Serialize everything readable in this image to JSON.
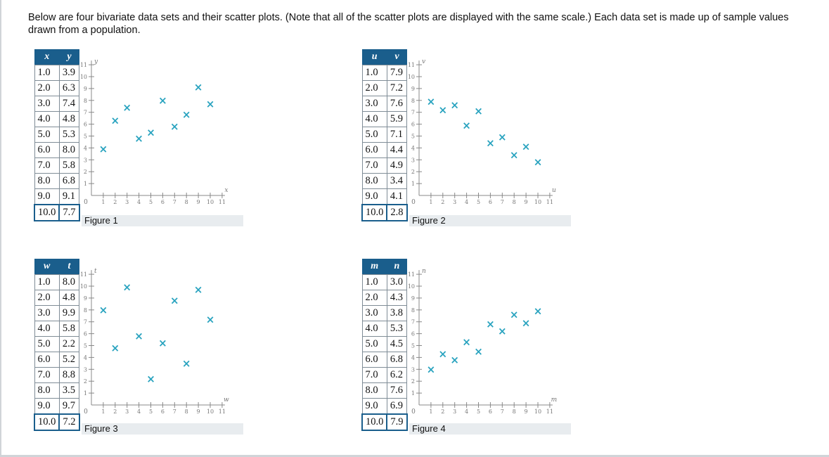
{
  "intro_text": "Below are four bivariate data sets and their scatter plots. (Note that all of the scatter plots are displayed with the same scale.) Each data set is made up of sample values drawn from a population.",
  "colors": {
    "header_bg": "#1a5e8c",
    "marker": "#29a3bf",
    "caption_bg": "#e8ecef"
  },
  "marker_symbol": "×",
  "figures": [
    {
      "caption": "Figure 1",
      "xvar": "x",
      "yvar": "y",
      "rows": [
        [
          "1.0",
          "3.9"
        ],
        [
          "2.0",
          "6.3"
        ],
        [
          "3.0",
          "7.4"
        ],
        [
          "4.0",
          "4.8"
        ],
        [
          "5.0",
          "5.3"
        ],
        [
          "6.0",
          "8.0"
        ],
        [
          "7.0",
          "5.8"
        ],
        [
          "8.0",
          "6.8"
        ],
        [
          "9.0",
          "9.1"
        ],
        [
          "10.0",
          "7.7"
        ]
      ]
    },
    {
      "caption": "Figure 2",
      "xvar": "u",
      "yvar": "v",
      "rows": [
        [
          "1.0",
          "7.9"
        ],
        [
          "2.0",
          "7.2"
        ],
        [
          "3.0",
          "7.6"
        ],
        [
          "4.0",
          "5.9"
        ],
        [
          "5.0",
          "7.1"
        ],
        [
          "6.0",
          "4.4"
        ],
        [
          "7.0",
          "4.9"
        ],
        [
          "8.0",
          "3.4"
        ],
        [
          "9.0",
          "4.1"
        ],
        [
          "10.0",
          "2.8"
        ]
      ]
    },
    {
      "caption": "Figure 3",
      "xvar": "w",
      "yvar": "t",
      "rows": [
        [
          "1.0",
          "8.0"
        ],
        [
          "2.0",
          "4.8"
        ],
        [
          "3.0",
          "9.9"
        ],
        [
          "4.0",
          "5.8"
        ],
        [
          "5.0",
          "2.2"
        ],
        [
          "6.0",
          "5.2"
        ],
        [
          "7.0",
          "8.8"
        ],
        [
          "8.0",
          "3.5"
        ],
        [
          "9.0",
          "9.7"
        ],
        [
          "10.0",
          "7.2"
        ]
      ]
    },
    {
      "caption": "Figure 4",
      "xvar": "m",
      "yvar": "n",
      "rows": [
        [
          "1.0",
          "3.0"
        ],
        [
          "2.0",
          "4.3"
        ],
        [
          "3.0",
          "3.8"
        ],
        [
          "4.0",
          "5.3"
        ],
        [
          "5.0",
          "4.5"
        ],
        [
          "6.0",
          "6.8"
        ],
        [
          "7.0",
          "6.2"
        ],
        [
          "8.0",
          "7.6"
        ],
        [
          "9.0",
          "6.9"
        ],
        [
          "10.0",
          "7.9"
        ]
      ]
    }
  ],
  "chart_data": [
    {
      "type": "scatter",
      "xlabel": "x",
      "ylabel": "y",
      "xlim": [
        0,
        11
      ],
      "ylim": [
        0,
        11
      ],
      "x": [
        1,
        2,
        3,
        4,
        5,
        6,
        7,
        8,
        9,
        10
      ],
      "y": [
        3.9,
        6.3,
        7.4,
        4.8,
        5.3,
        8.0,
        5.8,
        6.8,
        9.1,
        7.7
      ]
    },
    {
      "type": "scatter",
      "xlabel": "u",
      "ylabel": "v",
      "xlim": [
        0,
        11
      ],
      "ylim": [
        0,
        11
      ],
      "x": [
        1,
        2,
        3,
        4,
        5,
        6,
        7,
        8,
        9,
        10
      ],
      "y": [
        7.9,
        7.2,
        7.6,
        5.9,
        7.1,
        4.4,
        4.9,
        3.4,
        4.1,
        2.8
      ]
    },
    {
      "type": "scatter",
      "xlabel": "w",
      "ylabel": "t",
      "xlim": [
        0,
        11
      ],
      "ylim": [
        0,
        11
      ],
      "x": [
        1,
        2,
        3,
        4,
        5,
        6,
        7,
        8,
        9,
        10
      ],
      "y": [
        8.0,
        4.8,
        9.9,
        5.8,
        2.2,
        5.2,
        8.8,
        3.5,
        9.7,
        7.2
      ]
    },
    {
      "type": "scatter",
      "xlabel": "m",
      "ylabel": "n",
      "xlim": [
        0,
        11
      ],
      "ylim": [
        0,
        11
      ],
      "x": [
        1,
        2,
        3,
        4,
        5,
        6,
        7,
        8,
        9,
        10
      ],
      "y": [
        3.0,
        4.3,
        3.8,
        5.3,
        4.5,
        6.8,
        6.2,
        7.6,
        6.9,
        7.9
      ]
    }
  ]
}
